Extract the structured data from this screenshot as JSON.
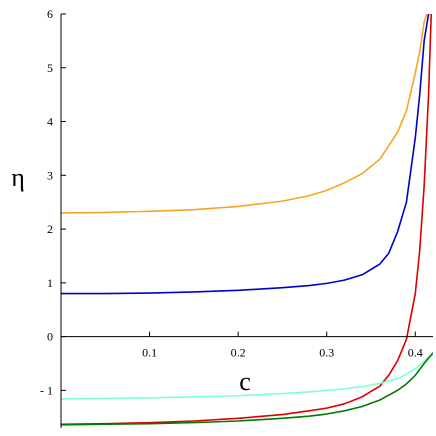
{
  "chart_data": {
    "type": "line",
    "xlabel": "c",
    "ylabel": "η",
    "xlim": [
      0,
      0.42
    ],
    "ylim": [
      -1.7,
      6
    ],
    "x_ticks": [
      0.1,
      0.2,
      0.3,
      0.4
    ],
    "x_tick_labels": [
      "0.1",
      "0.2",
      "0.3",
      "0.4"
    ],
    "y_ticks": [
      -1,
      0,
      1,
      2,
      3,
      4,
      5,
      6
    ],
    "y_tick_labels": [
      "- 1",
      "0",
      "1",
      "2",
      "3",
      "4",
      "5",
      "6"
    ],
    "grid": false,
    "legend": "none",
    "series": [
      {
        "color": "#f5a623",
        "x": [
          0.0,
          0.05,
          0.1,
          0.15,
          0.2,
          0.25,
          0.28,
          0.3,
          0.32,
          0.34,
          0.36,
          0.38,
          0.39,
          0.4,
          0.405,
          0.41,
          0.413
        ],
        "y": [
          2.3,
          2.31,
          2.33,
          2.36,
          2.42,
          2.52,
          2.62,
          2.72,
          2.86,
          3.03,
          3.3,
          3.8,
          4.2,
          4.9,
          5.3,
          5.85,
          6.0
        ]
      },
      {
        "color": "#0000cc",
        "x": [
          0.0,
          0.05,
          0.1,
          0.15,
          0.2,
          0.25,
          0.28,
          0.3,
          0.32,
          0.34,
          0.36,
          0.37,
          0.38,
          0.39,
          0.4,
          0.405,
          0.41,
          0.415
        ],
        "y": [
          0.8,
          0.8,
          0.81,
          0.83,
          0.86,
          0.91,
          0.95,
          0.99,
          1.05,
          1.15,
          1.35,
          1.55,
          1.95,
          2.5,
          3.7,
          4.5,
          5.5,
          6.0
        ]
      },
      {
        "color": "#dd0000",
        "x": [
          0.0,
          0.05,
          0.1,
          0.15,
          0.2,
          0.25,
          0.28,
          0.3,
          0.32,
          0.34,
          0.36,
          0.37,
          0.38,
          0.39,
          0.4,
          0.405,
          0.41,
          0.415,
          0.418
        ],
        "y": [
          -1.63,
          -1.62,
          -1.6,
          -1.57,
          -1.52,
          -1.45,
          -1.38,
          -1.33,
          -1.25,
          -1.12,
          -0.92,
          -0.72,
          -0.45,
          -0.05,
          0.8,
          1.6,
          2.8,
          4.5,
          6.0
        ]
      },
      {
        "color": "#7fffd4",
        "x": [
          0.0,
          0.05,
          0.1,
          0.15,
          0.2,
          0.25,
          0.28,
          0.3,
          0.32,
          0.34,
          0.36,
          0.38,
          0.39,
          0.4,
          0.41,
          0.42
        ],
        "y": [
          -1.16,
          -1.15,
          -1.14,
          -1.12,
          -1.1,
          -1.06,
          -1.03,
          -1.0,
          -0.97,
          -0.93,
          -0.87,
          -0.78,
          -0.7,
          -0.6,
          -0.45,
          -0.33
        ]
      },
      {
        "color": "#007a00",
        "x": [
          0.0,
          0.05,
          0.1,
          0.15,
          0.2,
          0.25,
          0.28,
          0.3,
          0.32,
          0.34,
          0.36,
          0.38,
          0.39,
          0.4,
          0.41,
          0.42
        ],
        "y": [
          -1.64,
          -1.63,
          -1.62,
          -1.6,
          -1.57,
          -1.52,
          -1.48,
          -1.44,
          -1.38,
          -1.3,
          -1.18,
          -1.0,
          -0.88,
          -0.72,
          -0.5,
          -0.3
        ]
      }
    ]
  }
}
